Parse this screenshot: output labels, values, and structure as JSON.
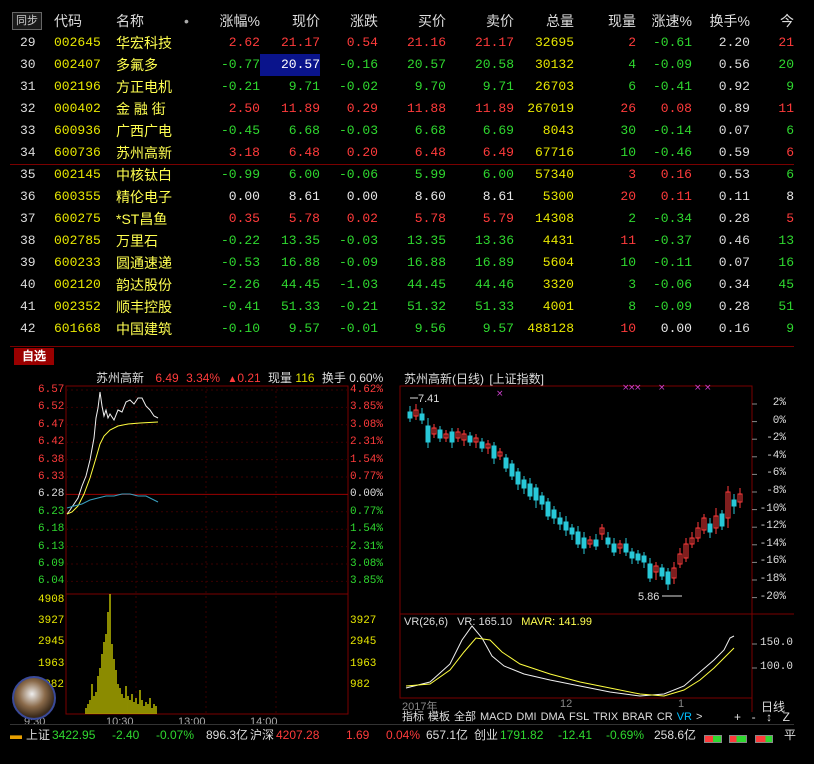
{
  "table": {
    "headers": {
      "sync": "同步",
      "code": "代码",
      "name": "名称",
      "dot": "•",
      "chg_pct": "涨幅%",
      "price": "现价",
      "change": "涨跌",
      "bid": "买价",
      "ask": "卖价",
      "volume": "总量",
      "cur_vol": "现量",
      "speed": "涨速%",
      "turnover": "换手%",
      "edge": "今"
    },
    "rows": [
      {
        "idx": "29",
        "code": "002645",
        "name": "华宏科技",
        "chg": "2.62",
        "price": "21.17",
        "change": "0.54",
        "bid": "21.16",
        "ask": "21.17",
        "vol": "32695",
        "cur": "2",
        "speed": "-0.61",
        "turn": "2.20",
        "edge": "21",
        "dir": "up",
        "cur_dir": "up",
        "speed_dir": "down"
      },
      {
        "idx": "30",
        "code": "002407",
        "name": "多氟多",
        "chg": "-0.77",
        "price": "20.57",
        "change": "-0.16",
        "bid": "20.57",
        "ask": "20.58",
        "vol": "30132",
        "cur": "4",
        "speed": "-0.09",
        "turn": "0.56",
        "edge": "20",
        "dir": "down",
        "cur_dir": "down",
        "speed_dir": "down"
      },
      {
        "idx": "31",
        "code": "002196",
        "name": "方正电机",
        "chg": "-0.21",
        "price": "9.71",
        "change": "-0.02",
        "bid": "9.70",
        "ask": "9.71",
        "vol": "26703",
        "cur": "6",
        "speed": "-0.41",
        "turn": "0.92",
        "edge": "9",
        "dir": "down",
        "cur_dir": "down",
        "speed_dir": "down"
      },
      {
        "idx": "32",
        "code": "000402",
        "name": "金 融 街",
        "chg": "2.50",
        "price": "11.89",
        "change": "0.29",
        "bid": "11.88",
        "ask": "11.89",
        "vol": "267019",
        "cur": "26",
        "speed": "0.08",
        "turn": "0.89",
        "edge": "11",
        "dir": "up",
        "cur_dir": "up",
        "speed_dir": "up"
      },
      {
        "idx": "33",
        "code": "600936",
        "name": "广西广电",
        "chg": "-0.45",
        "price": "6.68",
        "change": "-0.03",
        "bid": "6.68",
        "ask": "6.69",
        "vol": "8043",
        "cur": "30",
        "speed": "-0.14",
        "turn": "0.07",
        "edge": "6",
        "dir": "down",
        "cur_dir": "down",
        "speed_dir": "down"
      },
      {
        "idx": "34",
        "code": "600736",
        "name": "苏州高新",
        "chg": "3.18",
        "price": "6.48",
        "change": "0.20",
        "bid": "6.48",
        "ask": "6.49",
        "vol": "67716",
        "cur": "10",
        "speed": "-0.46",
        "turn": "0.59",
        "edge": "6",
        "dir": "up",
        "cur_dir": "down",
        "speed_dir": "down"
      },
      {
        "idx": "35",
        "code": "002145",
        "name": "中核钛白",
        "chg": "-0.99",
        "price": "6.00",
        "change": "-0.06",
        "bid": "5.99",
        "ask": "6.00",
        "vol": "57340",
        "cur": "3",
        "speed": "0.16",
        "turn": "0.53",
        "edge": "6",
        "dir": "down",
        "cur_dir": "up",
        "speed_dir": "up"
      },
      {
        "idx": "36",
        "code": "600355",
        "name": "精伦电子",
        "chg": "0.00",
        "price": "8.61",
        "change": "0.00",
        "bid": "8.60",
        "ask": "8.61",
        "vol": "5300",
        "cur": "20",
        "speed": "0.11",
        "turn": "0.11",
        "edge": "8",
        "dir": "flat",
        "cur_dir": "up",
        "speed_dir": "up"
      },
      {
        "idx": "37",
        "code": "600275",
        "name": "*ST昌鱼",
        "chg": "0.35",
        "price": "5.78",
        "change": "0.02",
        "bid": "5.78",
        "ask": "5.79",
        "vol": "14308",
        "cur": "2",
        "speed": "-0.34",
        "turn": "0.28",
        "edge": "5",
        "dir": "up",
        "cur_dir": "down",
        "speed_dir": "down"
      },
      {
        "idx": "38",
        "code": "002785",
        "name": "万里石",
        "chg": "-0.22",
        "price": "13.35",
        "change": "-0.03",
        "bid": "13.35",
        "ask": "13.36",
        "vol": "4431",
        "cur": "11",
        "speed": "-0.37",
        "turn": "0.46",
        "edge": "13",
        "dir": "down",
        "cur_dir": "up",
        "speed_dir": "down"
      },
      {
        "idx": "39",
        "code": "600233",
        "name": "圆通速递",
        "chg": "-0.53",
        "price": "16.88",
        "change": "-0.09",
        "bid": "16.88",
        "ask": "16.89",
        "vol": "5604",
        "cur": "10",
        "speed": "-0.11",
        "turn": "0.07",
        "edge": "16",
        "dir": "down",
        "cur_dir": "down",
        "speed_dir": "down"
      },
      {
        "idx": "40",
        "code": "002120",
        "name": "韵达股份",
        "chg": "-2.26",
        "price": "44.45",
        "change": "-1.03",
        "bid": "44.45",
        "ask": "44.46",
        "vol": "3320",
        "cur": "3",
        "speed": "-0.06",
        "turn": "0.34",
        "edge": "45",
        "dir": "down",
        "cur_dir": "down",
        "speed_dir": "down"
      },
      {
        "idx": "41",
        "code": "002352",
        "name": "顺丰控股",
        "chg": "-0.41",
        "price": "51.33",
        "change": "-0.21",
        "bid": "51.32",
        "ask": "51.33",
        "vol": "4001",
        "cur": "8",
        "speed": "-0.09",
        "turn": "0.28",
        "edge": "51",
        "dir": "down",
        "cur_dir": "down",
        "speed_dir": "down"
      },
      {
        "idx": "42",
        "code": "601668",
        "name": "中国建筑",
        "chg": "-0.10",
        "price": "9.57",
        "change": "-0.01",
        "bid": "9.56",
        "ask": "9.57",
        "vol": "488128",
        "cur": "10",
        "speed": "0.00",
        "turn": "0.16",
        "edge": "9",
        "dir": "down",
        "cur_dir": "up",
        "speed_dir": "flat"
      }
    ]
  },
  "tab": {
    "label": "自选"
  },
  "intraday": {
    "name": "苏州高新",
    "price": "6.49",
    "pct": "3.34%",
    "arrow": "▲",
    "change": "0.21",
    "cur_vol_label": "现量",
    "cur_vol": "116",
    "turnover_label": "换手",
    "turnover": "0.60%",
    "price_ticks": [
      "6.57",
      "6.52",
      "6.47",
      "6.42",
      "6.38",
      "6.33",
      "6.28",
      "6.23",
      "6.18",
      "6.13",
      "6.09",
      "6.04"
    ],
    "pct_ticks": [
      "4.62%",
      "3.85%",
      "3.08%",
      "2.31%",
      "1.54%",
      "0.77%",
      "0.00%",
      "0.77%",
      "1.54%",
      "2.31%",
      "3.08%",
      "3.85%"
    ],
    "vol_ticks": [
      "4908",
      "3927",
      "2945",
      "1963",
      "982"
    ],
    "time_ticks": [
      "9:30",
      "10:30",
      "13:00",
      "14:00"
    ]
  },
  "daily": {
    "title": "苏州高新(日线)",
    "index_label": "[上证指数]",
    "high_label": "7.41",
    "low_label": "5.86",
    "pct_ticks": [
      "2%",
      "0%",
      "-2%",
      "-4%",
      "-6%",
      "-8%",
      "-10%",
      "-12%",
      "-14%",
      "-16%",
      "-18%",
      "-20%"
    ],
    "vr_name": "VR(26,6)",
    "vr_label": "VR:",
    "vr_value": "165.10",
    "mavr_label": "MAVR:",
    "mavr_value": "141.99",
    "vr_ticks": [
      "150.0",
      "100.0"
    ],
    "date_year": "2017年",
    "date_mid": "12",
    "date_end": "1",
    "period_label": "日线",
    "indicators": [
      "指标",
      "模板",
      "全部",
      "MACD",
      "DMI",
      "DMA",
      "FSL",
      "TRIX",
      "BRAR",
      "CR",
      "VR"
    ],
    "active_indicator": "VR",
    "more": ">",
    "nav": [
      "+",
      "-",
      "↕",
      "Z"
    ]
  },
  "status": {
    "sh_label": "上证",
    "sh_value": "3422.95",
    "sh_change": "-2.40",
    "sh_pct": "-0.07%",
    "sh_amount": "896.3亿",
    "hs_label": "沪深",
    "hs_value": "4207.28",
    "hs_change": "1.69",
    "hs_pct": "0.04%",
    "hs_amount": "657.1亿",
    "cy_label": "创业",
    "cy_value": "1791.82",
    "cy_change": "-12.41",
    "cy_pct": "-0.69%",
    "cy_amount": "258.6亿",
    "edge": "平"
  },
  "colors": {
    "up": "#ff3b3b",
    "down": "#2fd82f",
    "code": "#e8e800",
    "bg": "#000000",
    "accent": "#9a0000"
  }
}
